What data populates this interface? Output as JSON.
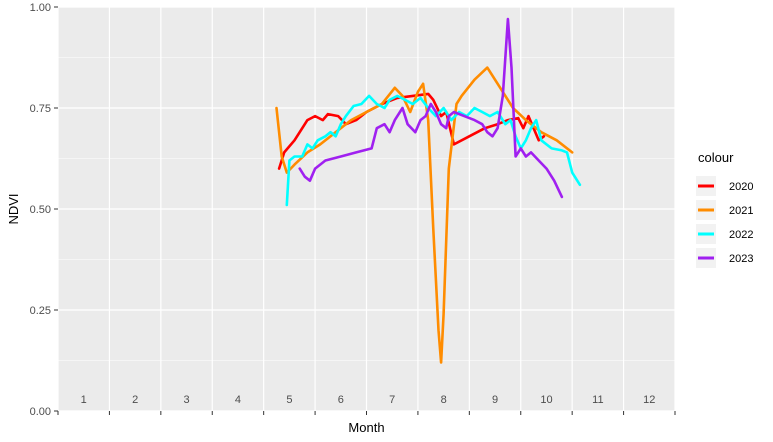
{
  "chart_data": {
    "type": "line",
    "title": "",
    "xlabel": "Month",
    "ylabel": "NDVI",
    "xlim": [
      0,
      12
    ],
    "ylim": [
      0,
      1
    ],
    "y_ticks": [
      "0.00",
      "0.25",
      "0.50",
      "0.75",
      "1.00"
    ],
    "y_tick_values": [
      0,
      0.25,
      0.5,
      0.75,
      1.0
    ],
    "month_labels": [
      "1",
      "2",
      "3",
      "4",
      "5",
      "6",
      "7",
      "8",
      "9",
      "10",
      "11",
      "12"
    ],
    "month_label_y": 0.02,
    "background": "#ebebeb",
    "grid": true,
    "legend": {
      "title": "colour",
      "position": "right"
    },
    "series": [
      {
        "name": "2020",
        "color": "#ff0000",
        "points": [
          [
            4.3,
            0.6
          ],
          [
            4.4,
            0.64
          ],
          [
            4.6,
            0.67
          ],
          [
            4.85,
            0.72
          ],
          [
            5.0,
            0.73
          ],
          [
            5.15,
            0.72
          ],
          [
            5.25,
            0.735
          ],
          [
            5.45,
            0.73
          ],
          [
            5.6,
            0.71
          ],
          [
            5.8,
            0.72
          ],
          [
            6.0,
            0.74
          ],
          [
            6.3,
            0.76
          ],
          [
            6.6,
            0.775
          ],
          [
            6.9,
            0.78
          ],
          [
            7.2,
            0.785
          ],
          [
            7.3,
            0.77
          ],
          [
            7.45,
            0.73
          ],
          [
            7.55,
            0.74
          ],
          [
            7.7,
            0.66
          ],
          [
            8.0,
            0.68
          ],
          [
            8.3,
            0.7
          ],
          [
            8.55,
            0.71
          ],
          [
            8.75,
            0.72
          ],
          [
            8.95,
            0.725
          ],
          [
            9.05,
            0.7
          ],
          [
            9.15,
            0.73
          ],
          [
            9.25,
            0.7
          ],
          [
            9.35,
            0.67
          ],
          [
            9.45,
            0.68
          ]
        ]
      },
      {
        "name": "2021",
        "color": "#ff8c00",
        "points": [
          [
            4.25,
            0.75
          ],
          [
            4.35,
            0.63
          ],
          [
            4.45,
            0.59
          ],
          [
            4.6,
            0.61
          ],
          [
            4.85,
            0.64
          ],
          [
            5.1,
            0.66
          ],
          [
            5.4,
            0.69
          ],
          [
            5.7,
            0.72
          ],
          [
            6.0,
            0.74
          ],
          [
            6.3,
            0.76
          ],
          [
            6.55,
            0.8
          ],
          [
            6.7,
            0.78
          ],
          [
            6.85,
            0.74
          ],
          [
            7.0,
            0.79
          ],
          [
            7.1,
            0.81
          ],
          [
            7.2,
            0.72
          ],
          [
            7.3,
            0.45
          ],
          [
            7.4,
            0.2
          ],
          [
            7.45,
            0.12
          ],
          [
            7.5,
            0.24
          ],
          [
            7.6,
            0.6
          ],
          [
            7.75,
            0.76
          ],
          [
            7.85,
            0.78
          ],
          [
            8.1,
            0.82
          ],
          [
            8.35,
            0.85
          ],
          [
            8.6,
            0.8
          ],
          [
            8.85,
            0.75
          ],
          [
            9.1,
            0.72
          ],
          [
            9.4,
            0.69
          ],
          [
            9.7,
            0.67
          ],
          [
            10.0,
            0.64
          ]
        ]
      },
      {
        "name": "2022",
        "color": "#00ffff",
        "points": [
          [
            4.45,
            0.51
          ],
          [
            4.5,
            0.62
          ],
          [
            4.6,
            0.63
          ],
          [
            4.75,
            0.63
          ],
          [
            4.85,
            0.66
          ],
          [
            4.95,
            0.65
          ],
          [
            5.05,
            0.67
          ],
          [
            5.2,
            0.68
          ],
          [
            5.3,
            0.69
          ],
          [
            5.4,
            0.68
          ],
          [
            5.5,
            0.71
          ],
          [
            5.6,
            0.73
          ],
          [
            5.75,
            0.755
          ],
          [
            5.9,
            0.76
          ],
          [
            6.05,
            0.78
          ],
          [
            6.2,
            0.76
          ],
          [
            6.35,
            0.75
          ],
          [
            6.45,
            0.77
          ],
          [
            6.6,
            0.78
          ],
          [
            6.75,
            0.77
          ],
          [
            6.9,
            0.76
          ],
          [
            7.05,
            0.775
          ],
          [
            7.2,
            0.75
          ],
          [
            7.35,
            0.73
          ],
          [
            7.5,
            0.75
          ],
          [
            7.65,
            0.72
          ],
          [
            7.8,
            0.74
          ],
          [
            7.95,
            0.73
          ],
          [
            8.1,
            0.75
          ],
          [
            8.25,
            0.74
          ],
          [
            8.4,
            0.73
          ],
          [
            8.55,
            0.74
          ],
          [
            8.7,
            0.71
          ],
          [
            8.8,
            0.72
          ],
          [
            8.9,
            0.68
          ],
          [
            9.0,
            0.65
          ],
          [
            9.1,
            0.67
          ],
          [
            9.2,
            0.7
          ],
          [
            9.3,
            0.72
          ],
          [
            9.4,
            0.67
          ],
          [
            9.6,
            0.65
          ],
          [
            9.8,
            0.645
          ],
          [
            9.9,
            0.64
          ],
          [
            10.0,
            0.59
          ],
          [
            10.15,
            0.56
          ]
        ]
      },
      {
        "name": "2023",
        "color": "#a020f0",
        "points": [
          [
            4.7,
            0.6
          ],
          [
            4.8,
            0.58
          ],
          [
            4.9,
            0.57
          ],
          [
            5.0,
            0.6
          ],
          [
            5.2,
            0.62
          ],
          [
            5.5,
            0.63
          ],
          [
            5.8,
            0.64
          ],
          [
            6.1,
            0.65
          ],
          [
            6.2,
            0.7
          ],
          [
            6.35,
            0.71
          ],
          [
            6.45,
            0.69
          ],
          [
            6.55,
            0.72
          ],
          [
            6.7,
            0.75
          ],
          [
            6.8,
            0.71
          ],
          [
            6.95,
            0.69
          ],
          [
            7.05,
            0.72
          ],
          [
            7.15,
            0.73
          ],
          [
            7.25,
            0.76
          ],
          [
            7.35,
            0.74
          ],
          [
            7.45,
            0.71
          ],
          [
            7.55,
            0.7
          ],
          [
            7.6,
            0.73
          ],
          [
            7.7,
            0.74
          ],
          [
            7.9,
            0.73
          ],
          [
            8.1,
            0.72
          ],
          [
            8.25,
            0.71
          ],
          [
            8.35,
            0.69
          ],
          [
            8.45,
            0.68
          ],
          [
            8.55,
            0.7
          ],
          [
            8.65,
            0.78
          ],
          [
            8.75,
            0.97
          ],
          [
            8.82,
            0.85
          ],
          [
            8.9,
            0.63
          ],
          [
            9.0,
            0.65
          ],
          [
            9.1,
            0.63
          ],
          [
            9.2,
            0.64
          ],
          [
            9.35,
            0.62
          ],
          [
            9.5,
            0.6
          ],
          [
            9.65,
            0.57
          ],
          [
            9.8,
            0.53
          ]
        ]
      }
    ]
  }
}
